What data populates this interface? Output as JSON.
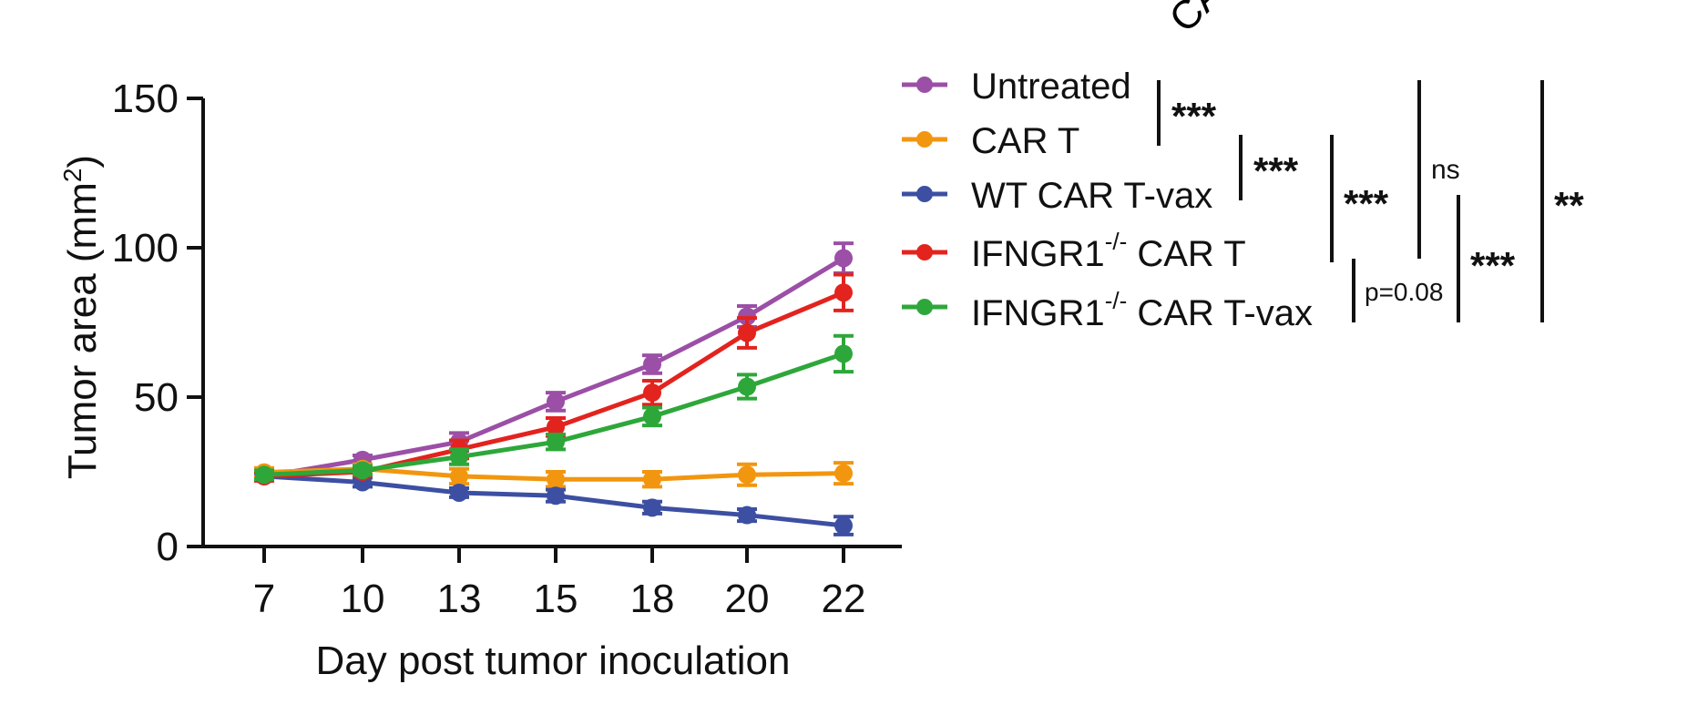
{
  "chart_data": {
    "type": "line",
    "xlabel": "Day post tumor inoculation",
    "ylabel_main": "Tumor area (mm",
    "ylabel_sup": "2",
    "ylabel_tail": ")",
    "categories": [
      "7",
      "10",
      "13",
      "15",
      "18",
      "20",
      "22"
    ],
    "ylim": [
      0,
      150
    ],
    "yticks": [
      "0",
      "50",
      "100",
      "150"
    ],
    "series": [
      {
        "name": "Untreated",
        "color": "#9b4fa6",
        "values": [
          23.5,
          29,
          35,
          48.5,
          61,
          77,
          96.5
        ],
        "errors": [
          1.5,
          1.5,
          3,
          3,
          3,
          3.5,
          5
        ]
      },
      {
        "name": "CAR T",
        "color": "#f2960f",
        "values": [
          24.8,
          26,
          23.5,
          22.5,
          22.5,
          24,
          24.5
        ],
        "errors": [
          1.5,
          1.5,
          2.5,
          2.5,
          2.5,
          3.5,
          3.5
        ]
      },
      {
        "name": "WT CAR T-vax",
        "color": "#3c4fa2",
        "values": [
          23.5,
          21.5,
          18,
          17,
          13,
          10.5,
          7
        ],
        "errors": [
          1,
          1.5,
          1.5,
          2,
          2,
          2,
          3
        ]
      },
      {
        "name_main": "IFNGR1",
        "name_sup": "-/-",
        "name_tail": " CAR T",
        "color": "#e3231e",
        "values": [
          23.5,
          25,
          32.5,
          40,
          51.5,
          71.5,
          85
        ],
        "errors": [
          1.5,
          1.5,
          3,
          3,
          4,
          5,
          6
        ]
      },
      {
        "name_main": "IFNGR1",
        "name_sup": "-/-",
        "name_tail": " CAR T-vax",
        "color": "#2ea73a",
        "values": [
          24,
          25.5,
          30,
          35,
          43.5,
          53.5,
          64.5
        ],
        "errors": [
          1.5,
          1.5,
          2.5,
          2.5,
          3,
          4,
          6
        ]
      }
    ],
    "significance": [
      "***",
      "***",
      "***",
      "ns",
      "p=0.08",
      "***",
      "**"
    ],
    "corner_fragment": "CA"
  }
}
